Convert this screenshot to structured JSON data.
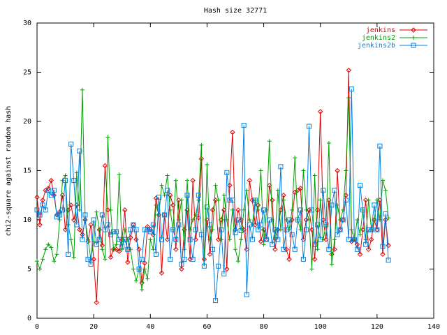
{
  "chart_data": {
    "type": "line",
    "title": "Hash size 32771",
    "ylabel": "chi2-square against random hash",
    "xlim": [
      0,
      140
    ],
    "xticks": [
      0,
      20,
      40,
      60,
      80,
      100,
      120,
      140
    ],
    "ylim": [
      0,
      30
    ],
    "yticks": [
      0,
      5,
      10,
      15,
      20,
      25,
      30
    ],
    "legend": "top-right",
    "grid": false,
    "x": [
      0,
      1,
      2,
      3,
      4,
      5,
      6,
      7,
      8,
      9,
      10,
      11,
      12,
      13,
      14,
      15,
      16,
      17,
      18,
      19,
      20,
      21,
      22,
      23,
      24,
      25,
      26,
      27,
      28,
      29,
      30,
      31,
      32,
      33,
      34,
      35,
      36,
      37,
      38,
      39,
      40,
      41,
      42,
      43,
      44,
      45,
      46,
      47,
      48,
      49,
      50,
      51,
      52,
      53,
      54,
      55,
      56,
      57,
      58,
      59,
      60,
      61,
      62,
      63,
      64,
      65,
      66,
      67,
      68,
      69,
      70,
      71,
      72,
      73,
      74,
      75,
      76,
      77,
      78,
      79,
      80,
      81,
      82,
      83,
      84,
      85,
      86,
      87,
      88,
      89,
      90,
      91,
      92,
      93,
      94,
      95,
      96,
      97,
      98,
      99,
      100,
      101,
      102,
      103,
      104,
      105,
      106,
      107,
      108,
      109,
      110,
      111,
      112,
      113,
      114,
      115,
      116,
      117,
      118,
      119,
      120,
      121,
      122,
      123,
      124
    ],
    "series": [
      {
        "name": "jenkins",
        "color": "#e00000",
        "marker": "diamond",
        "values": [
          12.3,
          9.5,
          12,
          13,
          13.2,
          14,
          12.5,
          10.5,
          10.8,
          12.5,
          9,
          11,
          11.5,
          10,
          11.5,
          9,
          8.5,
          10,
          7.8,
          9.5,
          6,
          1.6,
          9,
          7.4,
          15.5,
          11,
          6.2,
          7,
          7,
          6.8,
          8,
          11,
          5.7,
          8.2,
          9.5,
          8,
          7,
          3.6,
          5.6,
          9.3,
          9,
          8.5,
          12.2,
          10.5,
          4.6,
          10.5,
          8,
          12.5,
          11.5,
          7,
          12,
          5,
          9,
          11,
          6,
          14,
          8,
          10.2,
          16.2,
          6,
          10,
          6.5,
          11,
          12,
          8,
          10,
          11,
          5,
          13.5,
          18.9,
          9,
          11,
          10,
          9,
          7,
          14,
          12,
          9.5,
          11.5,
          7.8,
          9,
          8,
          13.5,
          12,
          7,
          9,
          11,
          12.5,
          7,
          6,
          10,
          12.8,
          13,
          13.2,
          8,
          10,
          11,
          9,
          6,
          11,
          21,
          10,
          8,
          12,
          6.5,
          7,
          15,
          9,
          10,
          12.5,
          25.2,
          7.8,
          8,
          7.5,
          6.5,
          9,
          12,
          7,
          8,
          10,
          9,
          12,
          6.5,
          10,
          7.4
        ]
      },
      {
        "name": "jenkins2",
        "color": "#00a000",
        "marker": "plus",
        "values": [
          5.8,
          5,
          6,
          7,
          7.5,
          7.2,
          5.8,
          6.5,
          10,
          14,
          14.5,
          9.5,
          8,
          6.2,
          14.8,
          11,
          23.2,
          10,
          8,
          6,
          7.8,
          10.8,
          9,
          7,
          6,
          18.4,
          11,
          7,
          7.5,
          14.6,
          7,
          9,
          8,
          7,
          5,
          3.8,
          5,
          2.9,
          5,
          4,
          8,
          7,
          11.5,
          10.5,
          13.5,
          12.5,
          14.5,
          11,
          9,
          14,
          10,
          12,
          7,
          14,
          9,
          10,
          10.5,
          12,
          17.6,
          5.5,
          15.6,
          8,
          9,
          13.5,
          12,
          8,
          12.5,
          10,
          8,
          11,
          7,
          5.8,
          8,
          11,
          13,
          10,
          9.5,
          12,
          11,
          15,
          7.5,
          11,
          18,
          10,
          8,
          13,
          9,
          12,
          10,
          9,
          11,
          16.3,
          10,
          9,
          15,
          11,
          10,
          5,
          14.5,
          7,
          12,
          8,
          9.5,
          17.8,
          5.5,
          8,
          11.5,
          10,
          11,
          15,
          22.4,
          9,
          8,
          10,
          8.5,
          11,
          8,
          12,
          9,
          10,
          12,
          10,
          14,
          13,
          10.2
        ]
      },
      {
        "name": "jenkins2b",
        "color": "#0080e0",
        "marker": "square",
        "values": [
          11,
          10.5,
          11.5,
          11,
          13,
          12.5,
          13,
          10.3,
          10.5,
          11,
          14,
          6.5,
          17.7,
          14,
          9.5,
          17,
          8,
          10.5,
          6,
          5.5,
          10,
          7.5,
          8,
          10.5,
          9,
          9.5,
          8.5,
          8.8,
          8.8,
          8,
          7.3,
          8,
          7,
          9,
          9.5,
          9,
          5,
          6,
          9,
          9,
          8.8,
          9.5,
          6.5,
          12.3,
          8,
          10.5,
          13,
          6,
          9,
          8,
          9.5,
          5.5,
          6,
          12.5,
          8,
          6,
          9,
          12.5,
          8.5,
          5.3,
          11.3,
          9.5,
          7,
          1.8,
          5.3,
          9,
          4.5,
          14.8,
          12,
          12,
          8.7,
          10,
          8.9,
          19.6,
          2.4,
          9.5,
          8,
          12,
          9,
          9.5,
          11,
          8,
          10,
          7.5,
          9,
          8,
          15.4,
          7,
          9,
          10,
          8.5,
          7,
          10,
          11,
          6,
          9,
          19.5,
          11,
          7.5,
          9.5,
          8,
          13,
          9.5,
          7,
          11.5,
          13,
          8.5,
          9,
          10,
          12,
          8,
          23.3,
          8,
          7,
          13.5,
          11,
          7.5,
          9,
          9,
          11.5,
          9,
          17.5,
          7.3,
          10.6,
          5.9
        ]
      }
    ]
  }
}
